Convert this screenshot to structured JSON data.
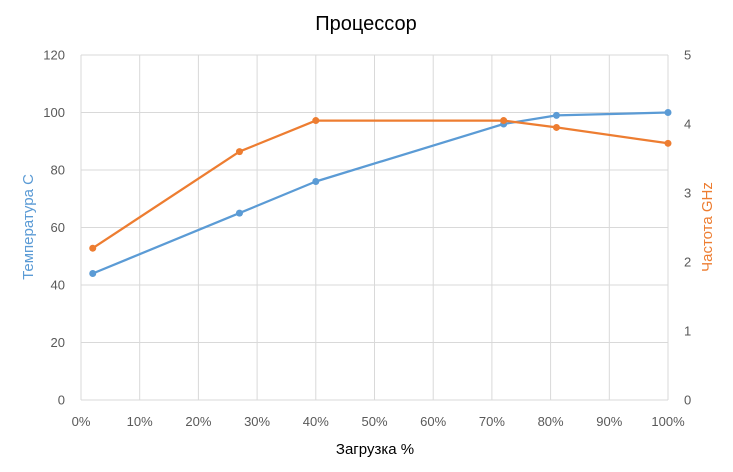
{
  "chart_data": {
    "type": "line",
    "title": "Процессор",
    "xlabel": "Загрузка %",
    "ylabel": "Температура C",
    "y2label": "Частота GHz",
    "xlim": [
      0,
      100
    ],
    "ylim": [
      0,
      120
    ],
    "y2lim": [
      0,
      5
    ],
    "x_ticks": [
      "0%",
      "10%",
      "20%",
      "30%",
      "40%",
      "50%",
      "60%",
      "70%",
      "80%",
      "90%",
      "100%"
    ],
    "y_ticks": [
      "0",
      "20",
      "40",
      "60",
      "80",
      "100",
      "120"
    ],
    "y2_ticks": [
      "0",
      "1",
      "2",
      "3",
      "4",
      "5"
    ],
    "grid": true,
    "legend": "none",
    "series": [
      {
        "axis": "left",
        "color": "#5B9BD5",
        "x": [
          2,
          27,
          40,
          72,
          81,
          100
        ],
        "values": [
          44,
          65,
          76,
          96,
          99,
          100
        ]
      },
      {
        "axis": "right",
        "color": "#ED7D31",
        "x": [
          2,
          27,
          40,
          72,
          81,
          100
        ],
        "values": [
          2.2,
          3.6,
          4.05,
          4.05,
          3.95,
          3.72
        ]
      }
    ]
  }
}
